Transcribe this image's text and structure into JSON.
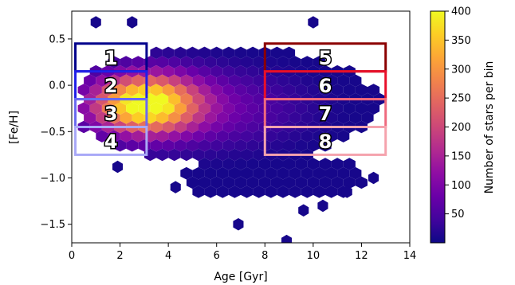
{
  "chart_data": {
    "type": "heatmap",
    "subtype": "hexbin",
    "xlabel": "Age [Gyr]",
    "ylabel": "[Fe/H]",
    "xlim": [
      0,
      14
    ],
    "ylim": [
      -1.7,
      0.8
    ],
    "x_ticks": [
      0,
      2,
      4,
      6,
      8,
      10,
      12,
      14
    ],
    "y_ticks": [
      0.5,
      0.0,
      -0.5,
      -1.0,
      -1.5
    ],
    "x_tick_labels": [
      "0",
      "2",
      "4",
      "6",
      "8",
      "10",
      "12",
      "14"
    ],
    "y_tick_labels": [
      "0.5",
      "0.0",
      "−0.5",
      "−1.0",
      "−1.5"
    ],
    "colormap": "plasma",
    "colorbar": {
      "label": "Number of stars per bin",
      "range": [
        0,
        400
      ],
      "ticks": [
        50,
        100,
        150,
        200,
        250,
        300,
        350,
        400
      ],
      "tick_labels": [
        "50",
        "100",
        "150",
        "200",
        "250",
        "300",
        "350",
        "400"
      ]
    },
    "density_peak": {
      "age": 3.0,
      "feh": -0.2,
      "count": 400
    },
    "boxes": [
      {
        "label": "1",
        "age": [
          0.15,
          3.1
        ],
        "feh": [
          0.15,
          0.45
        ],
        "color": "#00008b"
      },
      {
        "label": "2",
        "age": [
          0.15,
          3.1
        ],
        "feh": [
          -0.15,
          0.15
        ],
        "color": "#2020e8"
      },
      {
        "label": "3",
        "age": [
          0.15,
          3.1
        ],
        "feh": [
          -0.45,
          -0.15
        ],
        "color": "#6b6bf0"
      },
      {
        "label": "4",
        "age": [
          0.15,
          3.1
        ],
        "feh": [
          -0.75,
          -0.45
        ],
        "color": "#a9a9f7"
      },
      {
        "label": "5",
        "age": [
          8.0,
          13.0
        ],
        "feh": [
          0.15,
          0.45
        ],
        "color": "#8b0000"
      },
      {
        "label": "6",
        "age": [
          8.0,
          13.0
        ],
        "feh": [
          -0.15,
          0.15
        ],
        "color": "#e8102a"
      },
      {
        "label": "7",
        "age": [
          8.0,
          13.0
        ],
        "feh": [
          -0.45,
          -0.15
        ],
        "color": "#ef6a7e"
      },
      {
        "label": "8",
        "age": [
          8.0,
          13.0
        ],
        "feh": [
          -0.75,
          -0.45
        ],
        "color": "#f5a3ad"
      }
    ],
    "grid": false
  }
}
